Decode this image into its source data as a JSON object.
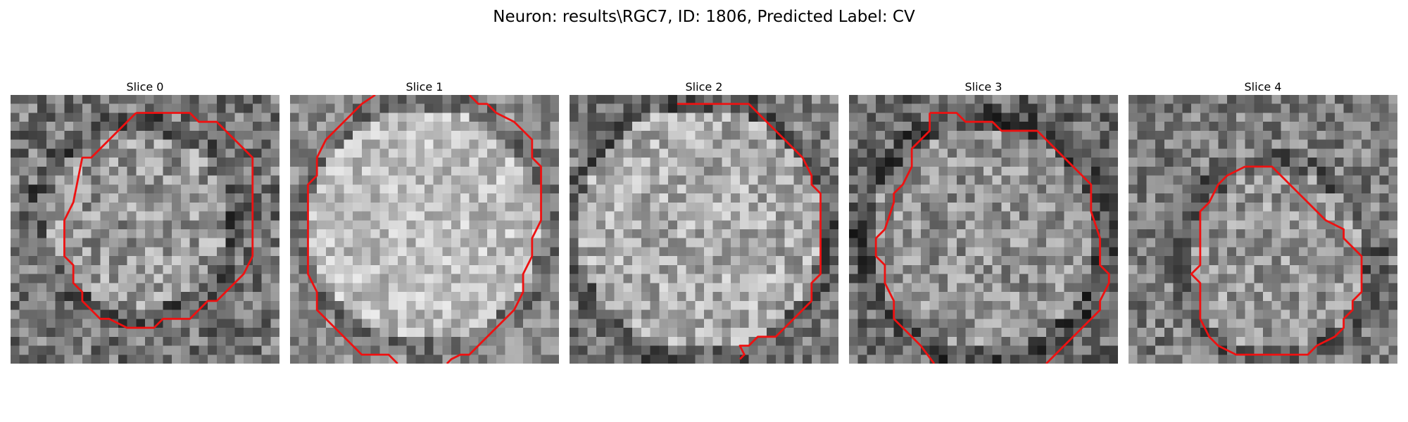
{
  "figure": {
    "title": "Neuron: results\\RGC7, ID: 1806, Predicted Label: CV"
  },
  "panels": [
    {
      "title": "Slice 0"
    },
    {
      "title": "Slice 1"
    },
    {
      "title": "Slice 2"
    },
    {
      "title": "Slice 3"
    },
    {
      "title": "Slice 4"
    }
  ],
  "colors": {
    "contour": "#ee1111",
    "background": "#ffffff"
  },
  "colormap": "gray"
}
